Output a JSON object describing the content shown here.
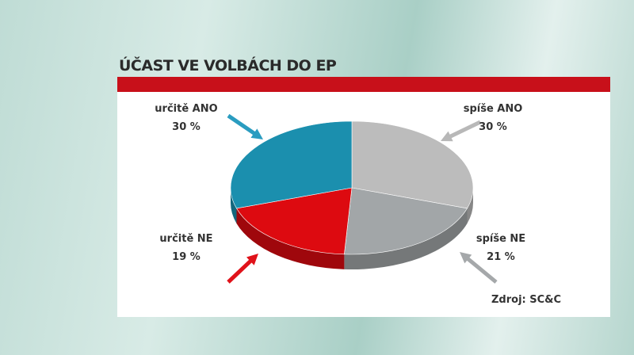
{
  "chart_data": {
    "type": "pie",
    "title": "ÚČAST VE VOLBÁCH DO EP",
    "slices": [
      {
        "label": "spíše ANO",
        "value": 30,
        "value_label": "30 %",
        "color": "#bcbcbc"
      },
      {
        "label": "spíše NE",
        "value": 21,
        "value_label": "21 %",
        "color": "#a2a6a8"
      },
      {
        "label": "určitě NE",
        "value": 19,
        "value_label": "19 %",
        "color": "#dd0a10"
      },
      {
        "label": "určitě ANO",
        "value": 30,
        "value_label": "30 %",
        "color": "#1b8fae"
      }
    ],
    "source": "Zdroj: SC&C",
    "style": "3d"
  }
}
